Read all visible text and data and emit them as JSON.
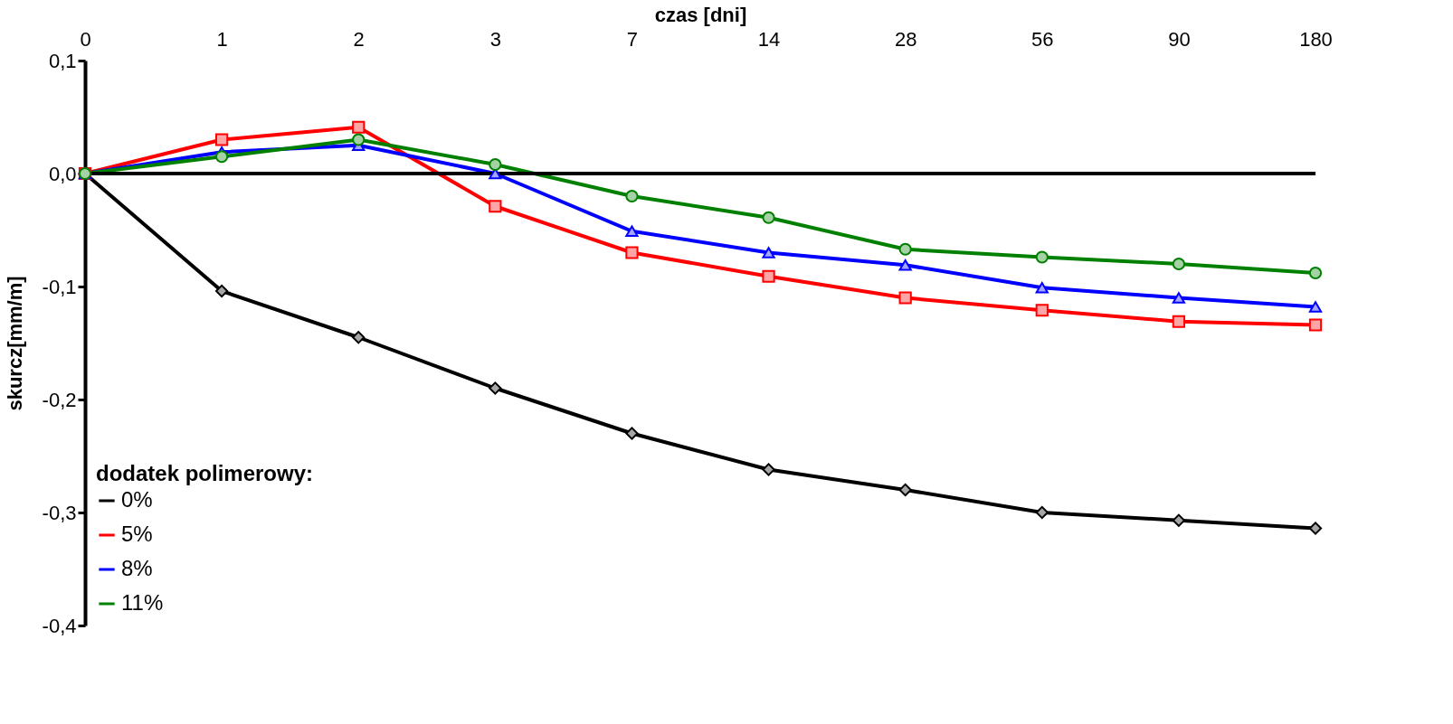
{
  "chart_data": {
    "type": "line",
    "xlabel": "czas [dni]",
    "ylabel": "skurcz[mm/m]",
    "legend_title": "dodatek polimerowy:",
    "categories": [
      "0",
      "1",
      "2",
      "3",
      "7",
      "14",
      "28",
      "56",
      "90",
      "180"
    ],
    "series": [
      {
        "name": "0%",
        "color": "#000000",
        "marker": "diamond",
        "values": [
          0,
          -0.104,
          -0.145,
          -0.19,
          -0.23,
          -0.262,
          -0.28,
          -0.3,
          -0.307,
          -0.314
        ]
      },
      {
        "name": "5%",
        "color": "#ff0000",
        "marker": "square",
        "values": [
          0,
          0.03,
          0.041,
          -0.029,
          -0.07,
          -0.091,
          -0.11,
          -0.121,
          -0.131,
          -0.134
        ]
      },
      {
        "name": "8%",
        "color": "#0000ff",
        "marker": "triangle",
        "values": [
          0,
          0.019,
          0.025,
          0.0,
          -0.051,
          -0.07,
          -0.081,
          -0.101,
          -0.11,
          -0.118
        ]
      },
      {
        "name": "11%",
        "color": "#008000",
        "marker": "circle",
        "values": [
          0,
          0.015,
          0.03,
          0.008,
          -0.02,
          -0.039,
          -0.067,
          -0.074,
          -0.08,
          -0.088
        ]
      }
    ],
    "ylim": [
      -0.4,
      0.1
    ],
    "yticks": [
      {
        "value": 0.1,
        "label": "0,1"
      },
      {
        "value": 0.0,
        "label": "0,0"
      },
      {
        "value": -0.1,
        "label": "-0,1"
      },
      {
        "value": -0.2,
        "label": "-0,2"
      },
      {
        "value": -0.3,
        "label": "-0,3"
      },
      {
        "value": -0.4,
        "label": "-0,4"
      }
    ],
    "ref_lines": [
      {
        "axis": "y",
        "value": 0,
        "color": "#000000"
      }
    ],
    "grid": false,
    "legend": "bottom left",
    "line_style": "solid"
  }
}
